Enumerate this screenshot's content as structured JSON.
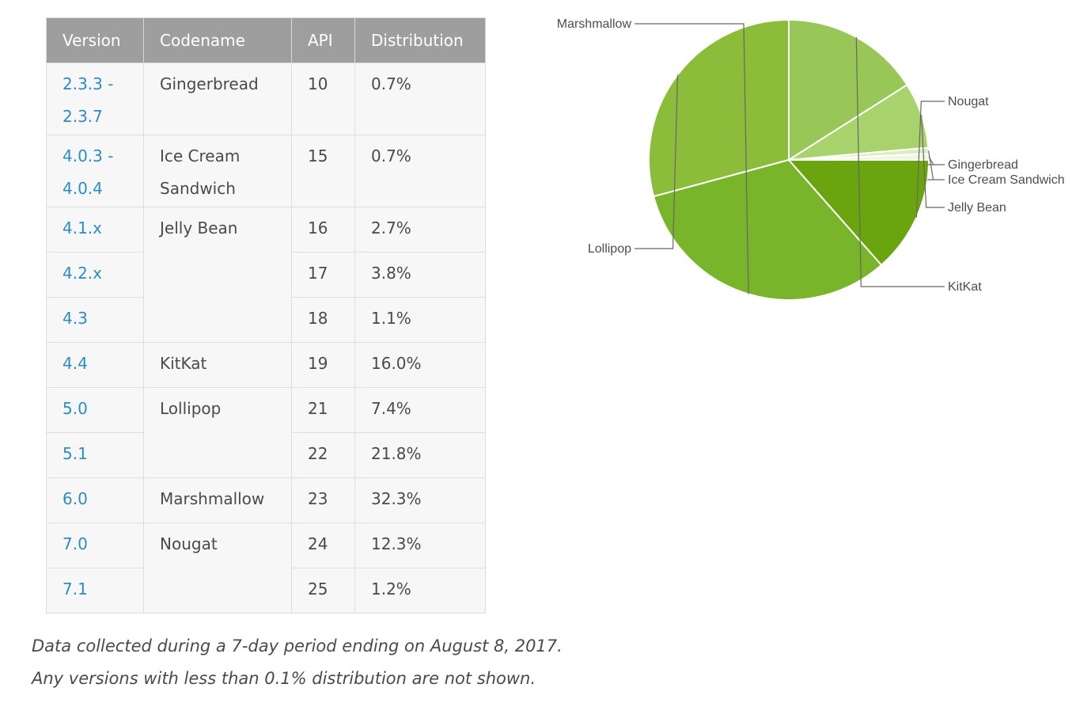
{
  "table": {
    "headers": [
      "Version",
      "Codename",
      "API",
      "Distribution"
    ],
    "rows": [
      {
        "version": [
          "2.3.3 -",
          "2.3.7"
        ],
        "codename": [
          "Gingerbread"
        ],
        "api": "10",
        "dist": "0.7%"
      },
      {
        "version": [
          "4.0.3 -",
          "4.0.4"
        ],
        "codename": [
          "Ice Cream",
          "Sandwich"
        ],
        "api": "15",
        "dist": "0.7%"
      },
      {
        "version": [
          "4.1.x"
        ],
        "codename": [
          "Jelly Bean"
        ],
        "api": "16",
        "dist": "2.7%"
      },
      {
        "version": [
          "4.2.x"
        ],
        "codename": [],
        "api": "17",
        "dist": "3.8%"
      },
      {
        "version": [
          "4.3"
        ],
        "codename": [],
        "api": "18",
        "dist": "1.1%"
      },
      {
        "version": [
          "4.4"
        ],
        "codename": [
          "KitKat"
        ],
        "api": "19",
        "dist": "16.0%"
      },
      {
        "version": [
          "5.0"
        ],
        "codename": [
          "Lollipop"
        ],
        "api": "21",
        "dist": "7.4%"
      },
      {
        "version": [
          "5.1"
        ],
        "codename": [],
        "api": "22",
        "dist": "21.8%"
      },
      {
        "version": [
          "6.0"
        ],
        "codename": [
          "Marshmallow"
        ],
        "api": "23",
        "dist": "32.3%"
      },
      {
        "version": [
          "7.0"
        ],
        "codename": [
          "Nougat"
        ],
        "api": "24",
        "dist": "12.3%"
      },
      {
        "version": [
          "7.1"
        ],
        "codename": [],
        "api": "25",
        "dist": "1.2%"
      }
    ]
  },
  "notes": [
    "Data collected during a 7-day period ending on August 8, 2017.",
    "Any versions with less than 0.1% distribution are not shown."
  ],
  "colors": {
    "header_bg": "#9e9e9e",
    "cell_bg": "#f7f7f7",
    "link": "#2a8dc4",
    "text": "#4a4a4a"
  },
  "chart_data": {
    "type": "pie",
    "labels": [
      "Gingerbread",
      "Ice Cream Sandwich",
      "Jelly Bean",
      "KitKat",
      "Lollipop",
      "Marshmallow",
      "Nougat"
    ],
    "values": [
      0.7,
      0.7,
      7.6,
      16.0,
      29.2,
      32.3,
      13.5
    ],
    "colors": [
      "#f0f7e0",
      "#dcedc0",
      "#a8d36c",
      "#98c758",
      "#8bbd3b",
      "#79b52a",
      "#6aa510"
    ],
    "legend": "external labels with leader lines"
  }
}
